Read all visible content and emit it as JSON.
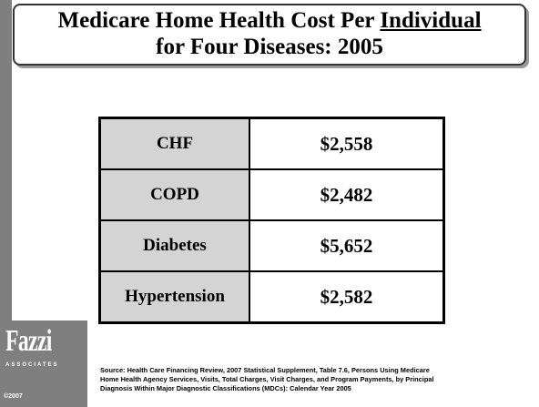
{
  "header": {
    "title": [
      "Medicare Home Health Cost Per",
      "Individual",
      "for Four Diseases: 2005"
    ]
  },
  "table": {
    "rows": [
      [
        "CHF",
        "$2,558"
      ],
      [
        "COPD",
        "$2,482"
      ],
      [
        "Diabetes",
        "$5,652"
      ],
      [
        "Hypertension",
        "$2,582"
      ]
    ]
  },
  "source": [
    "Source: Health Care Financing Review, 2007 Statistical Supplement, Table 7.6, Persons Using Medicare",
    "Home Health Agency Services, Visits, Total Charges, Visit Charges, and Program Payments, by Principal",
    "Diagnosis Within Major Diagnostic Classifications (MDCs): Calendar Year 2005"
  ],
  "logo": {
    "name": "Fazzi",
    "sub": "ASSOCIATES",
    "copyright": "©2007"
  }
}
